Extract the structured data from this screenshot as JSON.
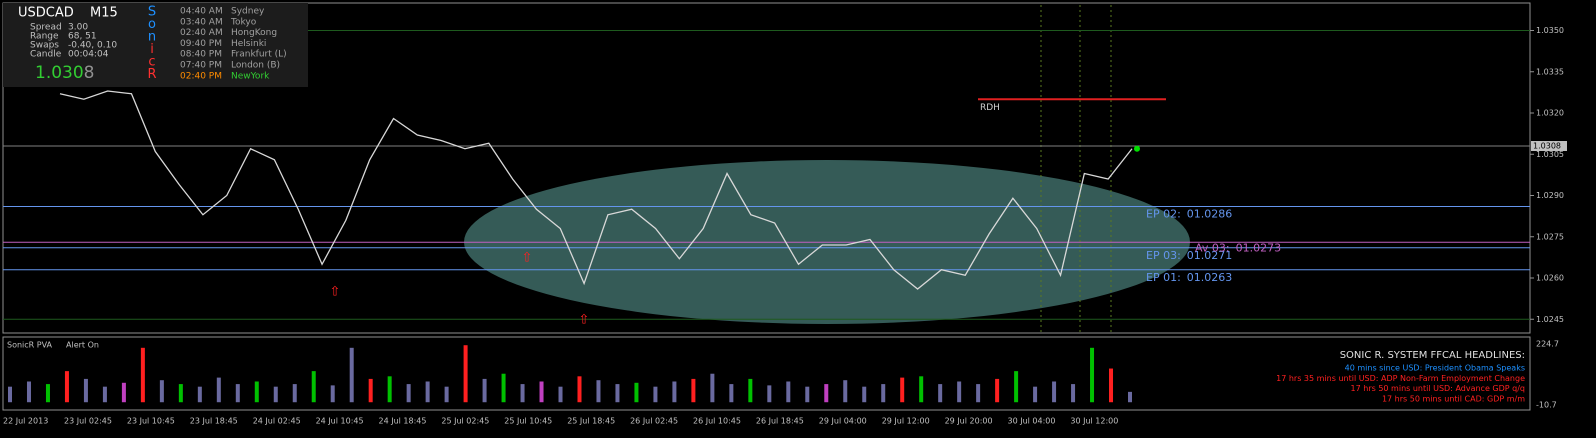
{
  "header": {
    "symbol": "USDCAD",
    "timeframe": "M15",
    "stats": [
      [
        "Spread",
        "3.00"
      ],
      [
        "Range",
        "68, 51"
      ],
      [
        "Swaps",
        "-0.40, 0.10"
      ],
      [
        "Candle",
        "00:04:04"
      ]
    ],
    "price_main": "1.030",
    "price_last": "8",
    "logo": [
      {
        "text": "S",
        "color": "#1e90ff"
      },
      {
        "text": "o",
        "color": "#1e90ff"
      },
      {
        "text": "n",
        "color": "#1e90ff"
      },
      {
        "text": "i",
        "color": "#ff3030"
      },
      {
        "text": "c",
        "color": "#ff3030"
      },
      {
        "text": "R",
        "color": "#ff3030"
      }
    ],
    "sessions": [
      {
        "time": "04:40 AM",
        "city": "Sydney",
        "color": "#a0a0a0"
      },
      {
        "time": "03:40 AM",
        "city": "Tokyo",
        "color": "#a0a0a0"
      },
      {
        "time": "02:40 AM",
        "city": "HongKong",
        "color": "#a0a0a0"
      },
      {
        "time": "09:40 PM",
        "city": "Helsinki",
        "color": "#a0a0a0"
      },
      {
        "time": "08:40 PM",
        "city": "Frankfurt  (L)",
        "color": "#a0a0a0"
      },
      {
        "time": "07:40 PM",
        "city": "London  (B)",
        "color": "#a0a0a0"
      },
      {
        "time": "02:40 PM",
        "city": "NewYork",
        "color": "#32cd32",
        "time_color": "#ff8c00"
      }
    ]
  },
  "chart": {
    "ylim": [
      1.024,
      1.036
    ],
    "yticks": [
      {
        "value": 1.035,
        "label": "1.0350"
      },
      {
        "value": 1.0335,
        "label": "1.0335"
      },
      {
        "value": 1.032,
        "label": "1.0320"
      },
      {
        "value": 1.0305,
        "label": "1.0305"
      },
      {
        "value": 1.029,
        "label": "1.0290"
      },
      {
        "value": 1.0275,
        "label": "1.0275"
      },
      {
        "value": 1.026,
        "label": "1.0260"
      },
      {
        "value": 1.0245,
        "label": "1.0245"
      }
    ],
    "current": {
      "value": 1.0308,
      "label": "1.0308"
    },
    "closes": [
      1.0327,
      1.0325,
      1.0328,
      1.0327,
      1.0306,
      1.0294,
      1.0283,
      1.029,
      1.0307,
      1.0303,
      1.0285,
      1.0265,
      1.0281,
      1.0303,
      1.0318,
      1.0312,
      1.031,
      1.0307,
      1.0309,
      1.0296,
      1.0285,
      1.0278,
      1.0258,
      1.0283,
      1.0285,
      1.0278,
      1.0267,
      1.0278,
      1.0298,
      1.0283,
      1.028,
      1.0265,
      1.0272,
      1.0272,
      1.0274,
      1.0263,
      1.0256,
      1.0263,
      1.0261,
      1.0276,
      1.0289,
      1.0278,
      1.0261,
      1.0298,
      1.0296,
      1.0307
    ],
    "levels": [
      {
        "name": "EP 02:",
        "value": 1.0286,
        "label": "01.0286",
        "color": "#6495ed"
      },
      {
        "name": "EP 03:",
        "value": 1.0271,
        "label": "01.0271",
        "color": "#6495ed"
      },
      {
        "name": "EP 01:",
        "value": 1.0263,
        "label": "01.0263",
        "color": "#6495ed"
      },
      {
        "name": "Av 03:",
        "value": 1.0273,
        "label": "01.0273",
        "color": "#c060c0"
      }
    ],
    "rdh": {
      "name": "RDH",
      "value": 1.0325
    },
    "xlabels": [
      "22 Jul 2013",
      "23 Jul 02:45",
      "23 Jul 10:45",
      "23 Jul 18:45",
      "24 Jul 02:45",
      "24 Jul 10:45",
      "24 Jul 18:45",
      "25 Jul 02:45",
      "25 Jul 10:45",
      "25 Jul 18:45",
      "26 Jul 02:45",
      "26 Jul 10:45",
      "26 Jul 18:45",
      "29 Jul 04:00",
      "29 Jul 12:00",
      "29 Jul 20:00",
      "30 Jul 04:00",
      "30 Jul 12:00"
    ]
  },
  "volume": {
    "title": "SonicR PVA",
    "alert": "Alert On",
    "ylim": [
      -10.7,
      224.7
    ],
    "yticks": [
      224.7,
      -10.7
    ],
    "values": [
      60,
      80,
      70,
      120,
      90,
      60,
      75,
      210,
      85,
      70,
      60,
      95,
      70,
      80,
      60,
      70,
      120,
      65,
      210,
      90,
      100,
      70,
      80,
      60,
      220,
      90,
      110,
      70,
      80,
      60,
      100,
      85,
      70,
      75,
      60,
      80,
      90,
      110,
      70,
      90,
      65,
      80,
      60,
      70,
      85,
      60,
      70,
      95,
      100,
      70,
      80,
      70,
      90,
      120,
      60,
      80,
      70,
      210,
      130,
      40
    ],
    "colors": [
      "#6a6aa0",
      "#6a6aa0",
      "#00c000",
      "#ff2020",
      "#6a6aa0",
      "#6a6aa0",
      "#c040c0",
      "#ff2020",
      "#6a6aa0",
      "#00c000",
      "#6a6aa0",
      "#6a6aa0",
      "#6a6aa0",
      "#00c000",
      "#6a6aa0",
      "#6a6aa0",
      "#00c000",
      "#6a6aa0",
      "#6a6aa0",
      "#ff2020",
      "#00c000",
      "#6a6aa0",
      "#6a6aa0",
      "#6a6aa0",
      "#ff2020",
      "#6a6aa0",
      "#00c000",
      "#6a6aa0",
      "#c040c0",
      "#6a6aa0",
      "#ff2020",
      "#6a6aa0",
      "#6a6aa0",
      "#00c000",
      "#6a6aa0",
      "#6a6aa0",
      "#ff2020",
      "#6a6aa0",
      "#6a6aa0",
      "#00c000",
      "#6a6aa0",
      "#6a6aa0",
      "#6a6aa0",
      "#c040c0",
      "#6a6aa0",
      "#6a6aa0",
      "#6a6aa0",
      "#ff2020",
      "#00c000",
      "#6a6aa0",
      "#6a6aa0",
      "#6a6aa0",
      "#ff2020",
      "#00c000",
      "#6a6aa0",
      "#6a6aa0",
      "#6a6aa0",
      "#00c000",
      "#ff2020",
      "#6a6aa0"
    ]
  },
  "headlines": {
    "title": "SONIC R. SYSTEM  FFCAL HEADLINES:",
    "items": [
      {
        "text": "40 mins since USD: President Obama Speaks",
        "color": "#1e90ff"
      },
      {
        "text": "17 hrs 35 mins until USD: ADP Non-Farm Employment Change",
        "color": "#ff2020"
      },
      {
        "text": "17 hrs 50 mins until USD: Advance GDP q/q",
        "color": "#ff2020"
      },
      {
        "text": "17 hrs 50 mins until CAD: GDP m/m",
        "color": "#ff2020"
      }
    ]
  }
}
